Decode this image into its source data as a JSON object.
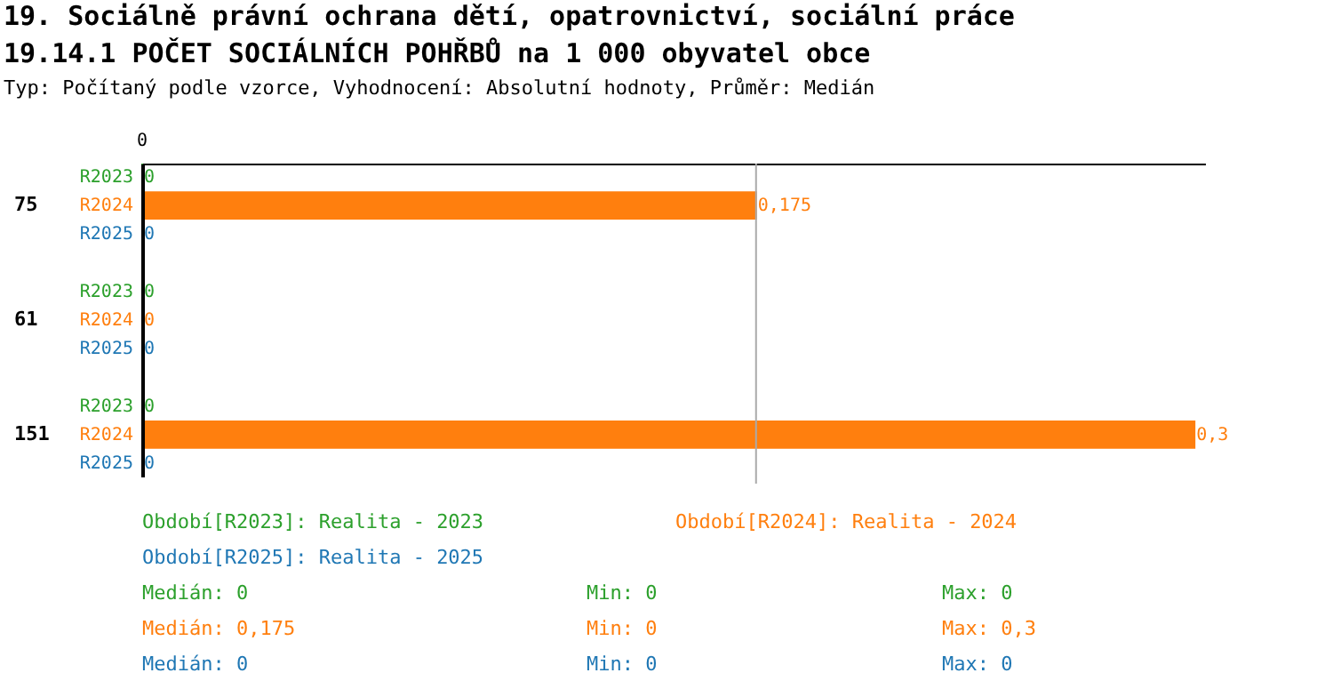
{
  "chart_data": {
    "type": "bar",
    "orientation": "horizontal",
    "xlim": [
      0,
      0.303
    ],
    "title": "19. Sociálně právní ochrana dětí, opatrovnictví, sociální práce",
    "subtitle": "19.14.1 POČET SOCIÁLNÍCH POHŘBŮ na 1 000 obyvatel obce",
    "categories": [
      "75",
      "61",
      "151"
    ],
    "series": [
      {
        "name": "R2023",
        "color": "#2ca02c",
        "values": [
          0,
          0,
          0
        ],
        "value_labels": [
          "0",
          "0",
          "0"
        ]
      },
      {
        "name": "R2024",
        "color": "#ff7f0e",
        "values": [
          0.175,
          0,
          0.3
        ],
        "value_labels": [
          "0,175",
          "0",
          "0,3"
        ]
      },
      {
        "name": "R2025",
        "color": "#1f77b4",
        "values": [
          0,
          0,
          0
        ],
        "value_labels": [
          "0",
          "0",
          "0"
        ]
      }
    ],
    "ref_lines": [
      {
        "axis": "x",
        "value": 0.175,
        "color": "#aaaaaa"
      }
    ],
    "annotations": [
      "Typ: Počítaný podle vzorce, Vyhodnocení: Absolutní hodnoty, Průměr: Medián",
      "0",
      "Období[R2023]: Realita - 2023",
      "Období[R2024]: Realita - 2024",
      "Období[R2025]: Realita - 2025",
      "Medián: 0",
      "Min: 0",
      "Max: 0",
      "Medián: 0,175",
      "Min: 0",
      "Max: 0,3",
      "Medián: 0",
      "Min: 0",
      "Max: 0"
    ]
  }
}
